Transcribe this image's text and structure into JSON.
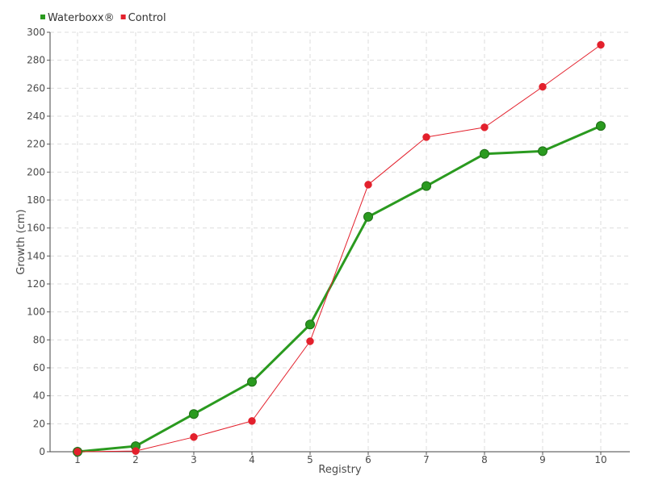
{
  "chart_data": {
    "type": "line",
    "title": "",
    "xlabel": "Registry",
    "ylabel": "Growth (cm)",
    "categories": [
      "1",
      "2",
      "3",
      "4",
      "5",
      "6",
      "7",
      "8",
      "9",
      "10"
    ],
    "y_ticks": [
      "0",
      "20",
      "40",
      "60",
      "80",
      "100",
      "120",
      "140",
      "160",
      "180",
      "200",
      "220",
      "240",
      "260",
      "280",
      "300"
    ],
    "ylim": [
      0,
      300
    ],
    "grid": true,
    "legend_position": "top-left",
    "series": [
      {
        "name": "Waterboxx®",
        "color": "#2a9a1f",
        "values": [
          0,
          4,
          27,
          50,
          91,
          168,
          190,
          213,
          215,
          233
        ]
      },
      {
        "name": "Control",
        "color": "#e3202c",
        "values": [
          0,
          0.5,
          10.5,
          22,
          79,
          191,
          225,
          232,
          261,
          291
        ]
      }
    ]
  }
}
